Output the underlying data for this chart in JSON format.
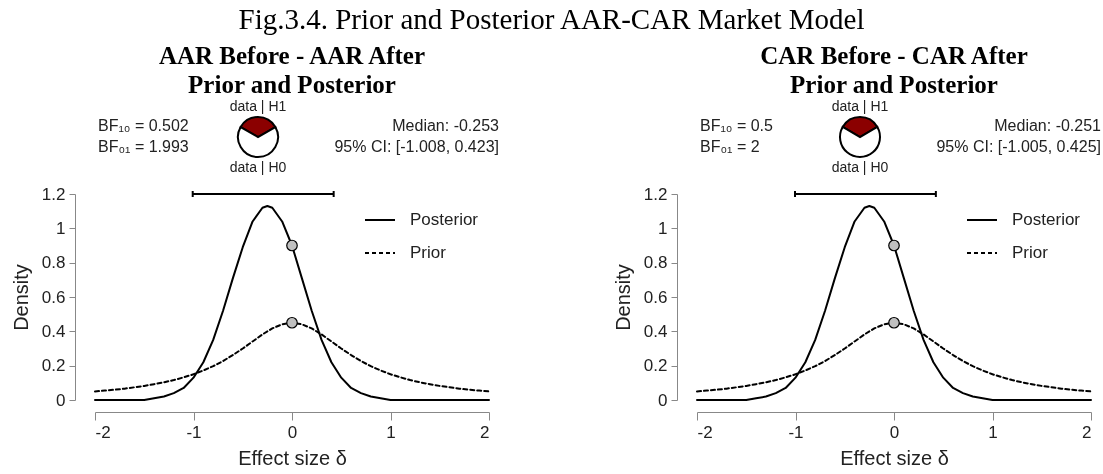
{
  "chart_data": [
    {
      "type": "other",
      "title": "Fig.3.4. Prior and Posterior AAR-CAR Market Model"
    },
    {
      "type": "line",
      "title": "AAR Before - AAR After",
      "subtitle": "Prior and Posterior",
      "xlabel": "Effect size δ",
      "ylabel": "Density",
      "xlim": [
        -2,
        2
      ],
      "xticks": [
        -2,
        -1,
        0,
        1,
        2
      ],
      "ylim": [
        0,
        1.2
      ],
      "yticks": [
        0,
        0.2,
        0.4,
        0.6,
        0.8,
        1,
        1.2
      ],
      "legend": "top right",
      "annotations": [
        "BF₁₀ = 0.502",
        "BF₀₁ = 1.993",
        "Median: -0.253",
        "95% CI: [-1.008, 0.423]"
      ],
      "series": [
        {
          "name": "Posterior",
          "type": "line",
          "color": "#000000",
          "line_style": "solid",
          "x": [
            -2,
            -1.8,
            -1.6,
            -1.5,
            -1.4,
            -1.3,
            -1.2,
            -1.1,
            -1,
            -0.9,
            -0.8,
            -0.7,
            -0.6,
            -0.5,
            -0.4,
            -0.3,
            -0.25,
            -0.2,
            -0.1,
            0,
            0.1,
            0.2,
            0.3,
            0.4,
            0.5,
            0.6,
            0.7,
            0.8,
            0.9,
            1,
            1.2,
            1.5,
            1.8,
            2
          ],
          "values": [
            0,
            0,
            0,
            0,
            0.01,
            0.02,
            0.04,
            0.07,
            0.13,
            0.22,
            0.35,
            0.52,
            0.71,
            0.89,
            1.04,
            1.12,
            1.13,
            1.12,
            1.04,
            0.9,
            0.71,
            0.52,
            0.35,
            0.22,
            0.13,
            0.07,
            0.04,
            0.02,
            0.01,
            0,
            0,
            0,
            0,
            0
          ]
        },
        {
          "name": "Prior",
          "type": "line",
          "color": "#000000",
          "line_style": "dashed",
          "x": [
            -2,
            -1.9,
            -1.8,
            -1.7,
            -1.6,
            -1.5,
            -1.4,
            -1.3,
            -1.2,
            -1.1,
            -1,
            -0.9,
            -0.8,
            -0.7,
            -0.6,
            -0.5,
            -0.4,
            -0.3,
            -0.2,
            -0.1,
            0,
            0.1,
            0.2,
            0.3,
            0.4,
            0.5,
            0.6,
            0.7,
            0.8,
            0.9,
            1,
            1.1,
            1.2,
            1.3,
            1.4,
            1.5,
            1.6,
            1.7,
            1.8,
            1.9,
            2
          ],
          "values": [
            0.05,
            0.055,
            0.06,
            0.066,
            0.074,
            0.082,
            0.092,
            0.103,
            0.116,
            0.132,
            0.15,
            0.172,
            0.197,
            0.227,
            0.262,
            0.3,
            0.341,
            0.382,
            0.417,
            0.441,
            0.45,
            0.441,
            0.417,
            0.382,
            0.341,
            0.3,
            0.262,
            0.227,
            0.197,
            0.172,
            0.15,
            0.132,
            0.116,
            0.103,
            0.092,
            0.082,
            0.074,
            0.066,
            0.06,
            0.055,
            0.05
          ]
        },
        {
          "type": "scatter",
          "color": "#c0c0c0",
          "marker": "circle",
          "x": [
            0,
            0
          ],
          "values": [
            0.9,
            0.45
          ]
        },
        {
          "type": "line",
          "color": "#000000",
          "line_style": "solid",
          "x": [
            -1.008,
            0.423
          ],
          "values": [
            1.2,
            1.2
          ]
        }
      ]
    },
    {
      "type": "pie",
      "categories": [
        "data | H1",
        "data | H0"
      ],
      "values": [
        33.4,
        66.6
      ],
      "colors": [
        "#8b0000",
        "#ffffff"
      ]
    },
    {
      "type": "line",
      "title": "CAR Before - CAR After",
      "subtitle": "Prior and Posterior",
      "xlabel": "Effect size δ",
      "ylabel": "Density",
      "xlim": [
        -2,
        2
      ],
      "xticks": [
        -2,
        -1,
        0,
        1,
        2
      ],
      "ylim": [
        0,
        1.2
      ],
      "yticks": [
        0,
        0.2,
        0.4,
        0.6,
        0.8,
        1,
        1.2
      ],
      "legend": "top right",
      "annotations": [
        "BF₁₀ = 0.5",
        "BF₀₁ = 2",
        "Median: -0.251",
        "95% CI: [-1.005, 0.425]"
      ],
      "series": [
        {
          "name": "Posterior",
          "type": "line",
          "color": "#000000",
          "line_style": "solid",
          "x": [
            -2,
            -1.8,
            -1.6,
            -1.5,
            -1.4,
            -1.3,
            -1.2,
            -1.1,
            -1,
            -0.9,
            -0.8,
            -0.7,
            -0.6,
            -0.5,
            -0.4,
            -0.3,
            -0.25,
            -0.2,
            -0.1,
            0,
            0.1,
            0.2,
            0.3,
            0.4,
            0.5,
            0.6,
            0.7,
            0.8,
            0.9,
            1,
            1.2,
            1.5,
            1.8,
            2
          ],
          "values": [
            0,
            0,
            0,
            0,
            0.01,
            0.02,
            0.04,
            0.07,
            0.13,
            0.22,
            0.35,
            0.52,
            0.71,
            0.89,
            1.04,
            1.12,
            1.13,
            1.12,
            1.04,
            0.9,
            0.71,
            0.52,
            0.35,
            0.22,
            0.13,
            0.07,
            0.04,
            0.02,
            0.01,
            0,
            0,
            0,
            0,
            0
          ]
        },
        {
          "name": "Prior",
          "type": "line",
          "color": "#000000",
          "line_style": "dashed",
          "x": [
            -2,
            -1.9,
            -1.8,
            -1.7,
            -1.6,
            -1.5,
            -1.4,
            -1.3,
            -1.2,
            -1.1,
            -1,
            -0.9,
            -0.8,
            -0.7,
            -0.6,
            -0.5,
            -0.4,
            -0.3,
            -0.2,
            -0.1,
            0,
            0.1,
            0.2,
            0.3,
            0.4,
            0.5,
            0.6,
            0.7,
            0.8,
            0.9,
            1,
            1.1,
            1.2,
            1.3,
            1.4,
            1.5,
            1.6,
            1.7,
            1.8,
            1.9,
            2
          ],
          "values": [
            0.05,
            0.055,
            0.06,
            0.066,
            0.074,
            0.082,
            0.092,
            0.103,
            0.116,
            0.132,
            0.15,
            0.172,
            0.197,
            0.227,
            0.262,
            0.3,
            0.341,
            0.382,
            0.417,
            0.441,
            0.45,
            0.441,
            0.417,
            0.382,
            0.341,
            0.3,
            0.262,
            0.227,
            0.197,
            0.172,
            0.15,
            0.132,
            0.116,
            0.103,
            0.092,
            0.082,
            0.074,
            0.066,
            0.06,
            0.055,
            0.05
          ]
        },
        {
          "type": "scatter",
          "color": "#c0c0c0",
          "marker": "circle",
          "x": [
            0,
            0
          ],
          "values": [
            0.9,
            0.45
          ]
        },
        {
          "type": "line",
          "color": "#000000",
          "line_style": "solid",
          "x": [
            -1.005,
            0.425
          ],
          "values": [
            1.2,
            1.2
          ]
        }
      ]
    },
    {
      "type": "pie",
      "categories": [
        "data | H1",
        "data | H0"
      ],
      "values": [
        33.3,
        66.7
      ],
      "colors": [
        "#8b0000",
        "#ffffff"
      ]
    }
  ]
}
